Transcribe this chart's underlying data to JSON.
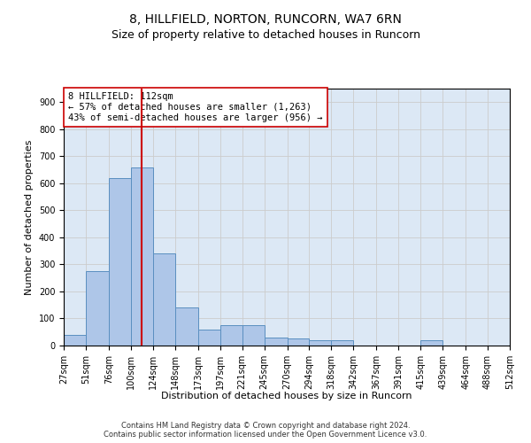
{
  "title": "8, HILLFIELD, NORTON, RUNCORN, WA7 6RN",
  "subtitle": "Size of property relative to detached houses in Runcorn",
  "xlabel": "Distribution of detached houses by size in Runcorn",
  "ylabel": "Number of detached properties",
  "footer_line1": "Contains HM Land Registry data © Crown copyright and database right 2024.",
  "footer_line2": "Contains public sector information licensed under the Open Government Licence v3.0.",
  "annotation_line1": "8 HILLFIELD: 112sqm",
  "annotation_line2": "← 57% of detached houses are smaller (1,263)",
  "annotation_line3": "43% of semi-detached houses are larger (956) →",
  "bar_color": "#aec6e8",
  "bar_edge_color": "#5a8fc0",
  "vline_color": "#cc0000",
  "vline_x": 112,
  "bin_edges": [
    27,
    51,
    76,
    100,
    124,
    148,
    173,
    197,
    221,
    245,
    270,
    294,
    318,
    342,
    367,
    391,
    415,
    439,
    464,
    488,
    512
  ],
  "bar_heights": [
    40,
    275,
    620,
    660,
    340,
    140,
    60,
    75,
    75,
    30,
    25,
    20,
    20,
    0,
    0,
    0,
    20,
    0,
    0,
    0
  ],
  "ylim": [
    0,
    950
  ],
  "yticks": [
    0,
    100,
    200,
    300,
    400,
    500,
    600,
    700,
    800,
    900
  ],
  "background_color": "#ffffff",
  "grid_color": "#cccccc",
  "title_fontsize": 10,
  "subtitle_fontsize": 9,
  "axis_label_fontsize": 8,
  "tick_fontsize": 7,
  "footer_fontsize": 6,
  "annotation_fontsize": 7.5,
  "annotation_box_color": "#ffffff",
  "annotation_box_edge": "#cc0000",
  "axes_bg_color": "#dce8f5"
}
